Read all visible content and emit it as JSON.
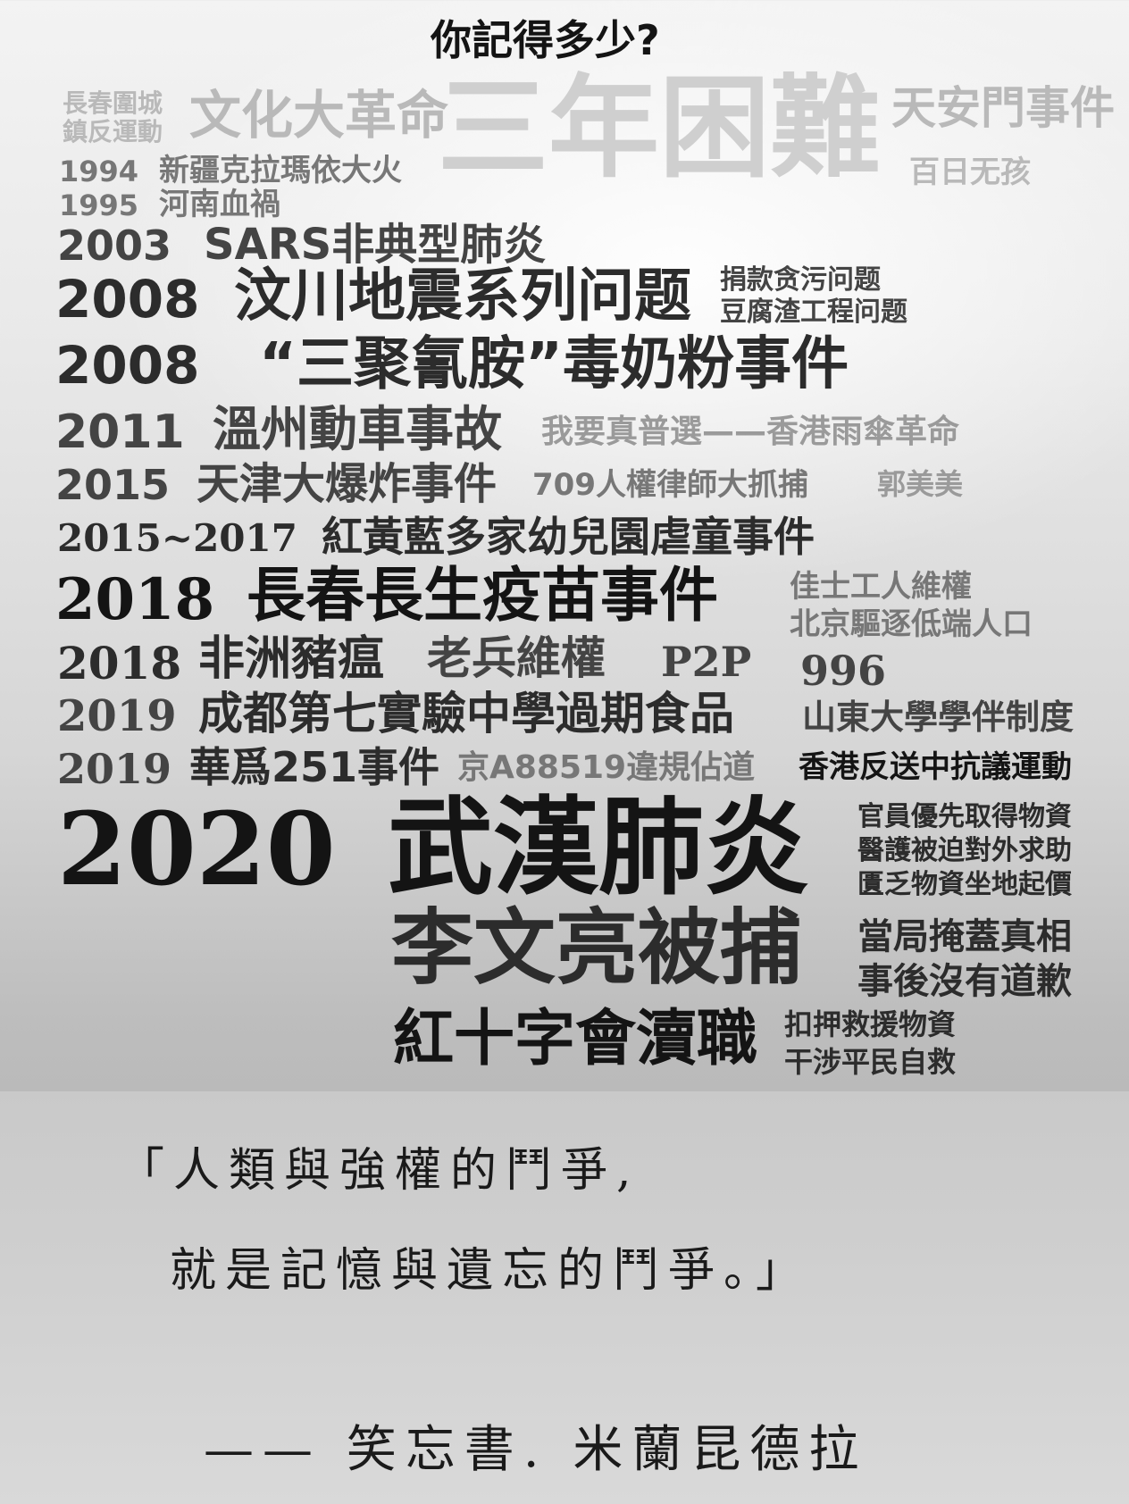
{
  "title": "你記得多少?",
  "top_words": {
    "w1": "長春圍城",
    "w2": "鎮反運動",
    "w3": "文化大革命",
    "w4": "三年困難",
    "w5": "天安門事件",
    "w6": "百日无孩"
  },
  "events": [
    {
      "year": "1994",
      "text": "新疆克拉瑪依大火"
    },
    {
      "year": "1995",
      "text": "河南血禍"
    },
    {
      "year": "2003",
      "text": "SARS非典型肺炎"
    },
    {
      "year": "2008",
      "text": "汶川地震系列问题",
      "side": [
        "捐款贪污问题",
        "豆腐渣工程问题"
      ]
    },
    {
      "year": "2008",
      "text": "“三聚氰胺”毒奶粉事件"
    },
    {
      "year": "2011",
      "text": "溫州動車事故",
      "extra": "我要真普選——香港雨傘革命"
    },
    {
      "year": "2015",
      "text": "天津大爆炸事件",
      "extra": "709人權律師大抓捕",
      "extra2": "郭美美"
    },
    {
      "year": "2015~2017",
      "text": "紅黃藍多家幼兒園虐童事件"
    },
    {
      "year": "2018",
      "text": "長春長生疫苗事件",
      "side": [
        "佳士工人維權",
        "北京驅逐低端人口"
      ]
    },
    {
      "year": "2018",
      "text": "非洲豬瘟",
      "extra": "老兵維權",
      "extra2": "P2P",
      "extra3": "996"
    },
    {
      "year": "2019",
      "text": "成都第七實驗中學過期食品",
      "extra": "山東大學學伴制度"
    },
    {
      "year": "2019",
      "text": "華爲251事件",
      "extra": "京A88519違規佔道",
      "extra2": "香港反送中抗議運動"
    }
  ],
  "covid": {
    "year": "2020",
    "main1": "武漢肺炎",
    "main1_side": [
      "官員優先取得物資",
      "醫護被迫對外求助",
      "匱乏物資坐地起價"
    ],
    "main2": "李文亮被捕",
    "main2_side": [
      "當局掩蓋真相",
      "事後沒有道歉"
    ],
    "main3": "紅十字會瀆職",
    "main3_side": [
      "扣押救援物資",
      "干涉平民自救"
    ]
  },
  "quote": {
    "line1": "「人類與強權的鬥爭,",
    "line2": "就是記憶與遺忘的鬥爭。」",
    "attribution": "—— 笑忘書. 米蘭昆德拉"
  }
}
